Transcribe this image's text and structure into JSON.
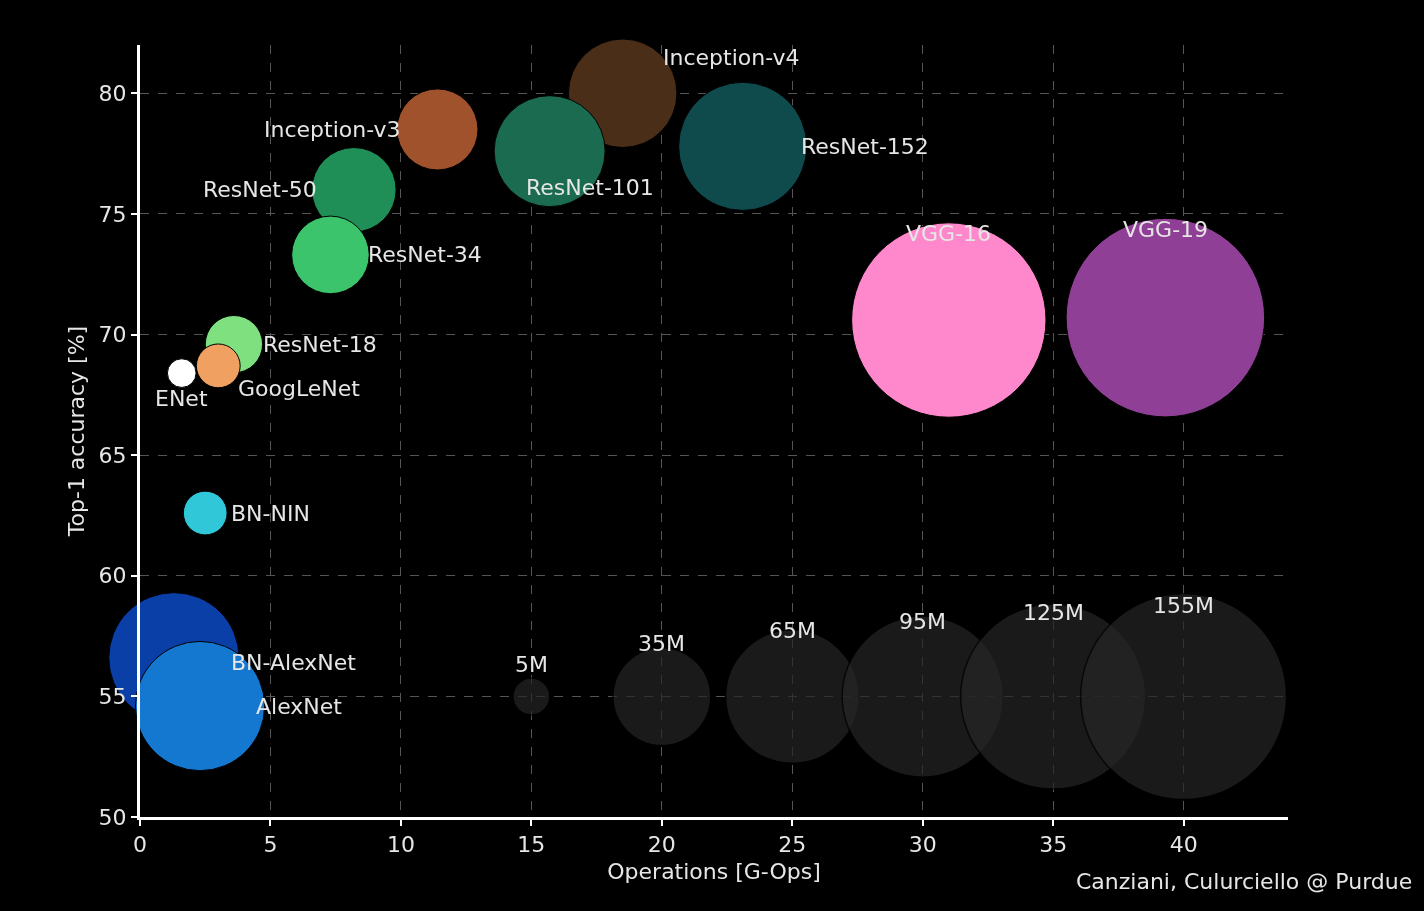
{
  "chart_data": {
    "type": "bubble",
    "xlabel": "Operations [G-Ops]",
    "ylabel": "Top-1 accuracy [%]",
    "xlim": [
      0,
      44
    ],
    "xticks": [
      0,
      5,
      10,
      15,
      20,
      25,
      30,
      35,
      40
    ],
    "ylim": [
      50,
      82
    ],
    "yticks": [
      50,
      55,
      60,
      65,
      70,
      75,
      80
    ],
    "grid": true,
    "legend": false,
    "marker": "circle",
    "size_legend": [
      {
        "value": 5,
        "label": "5M"
      },
      {
        "value": 35,
        "label": "35M"
      },
      {
        "value": 65,
        "label": "65M"
      },
      {
        "value": 95,
        "label": "95M"
      },
      {
        "value": 125,
        "label": "125M"
      },
      {
        "value": 155,
        "label": "155M"
      }
    ],
    "annotations": [
      "Canziani, Culurciello @ Purdue"
    ],
    "series": [
      {
        "name": "Inception-v4",
        "color": "#4a2e18",
        "x": [
          18.5
        ],
        "values": [
          80.0
        ],
        "sizes": [
          43
        ]
      },
      {
        "name": "Inception-v3",
        "color": "#a0522d",
        "x": [
          11.4
        ],
        "values": [
          78.5
        ],
        "sizes": [
          24
        ]
      },
      {
        "name": "ResNet-152",
        "color": "#0f4a4d",
        "x": [
          23.1
        ],
        "values": [
          77.8
        ],
        "sizes": [
          60
        ]
      },
      {
        "name": "ResNet-101",
        "color": "#1a6b50",
        "x": [
          15.7
        ],
        "values": [
          77.6
        ],
        "sizes": [
          45
        ]
      },
      {
        "name": "ResNet-50",
        "color": "#1f8f57",
        "x": [
          8.2
        ],
        "values": [
          76.0
        ],
        "sizes": [
          26
        ]
      },
      {
        "name": "ResNet-34",
        "color": "#3cc46c",
        "x": [
          7.3
        ],
        "values": [
          73.3
        ],
        "sizes": [
          22
        ]
      },
      {
        "name": "ResNet-18",
        "color": "#7ee07e",
        "x": [
          3.6
        ],
        "values": [
          69.6
        ],
        "sizes": [
          12
        ]
      },
      {
        "name": "GoogLeNet",
        "color": "#f0a060",
        "x": [
          3.0
        ],
        "values": [
          68.7
        ],
        "sizes": [
          7
        ]
      },
      {
        "name": "ENet",
        "color": "#ffffff",
        "x": [
          1.6
        ],
        "values": [
          68.4
        ],
        "sizes": [
          3
        ]
      },
      {
        "name": "BN-NIN",
        "color": "#30c8d8",
        "x": [
          2.5
        ],
        "values": [
          62.6
        ],
        "sizes": [
          7
        ]
      },
      {
        "name": "BN-AlexNet",
        "color": "#0a3fa8",
        "x": [
          1.3
        ],
        "values": [
          56.6
        ],
        "sizes": [
          62
        ]
      },
      {
        "name": "AlexNet",
        "color": "#1478d0",
        "x": [
          2.3
        ],
        "values": [
          54.6
        ],
        "sizes": [
          61
        ]
      },
      {
        "name": "VGG-16",
        "color": "#ff88cc",
        "x": [
          31.0
        ],
        "values": [
          70.6
        ],
        "sizes": [
          138
        ]
      },
      {
        "name": "VGG-19",
        "color": "#8f3f95",
        "x": [
          39.3
        ],
        "values": [
          70.7
        ],
        "sizes": [
          144
        ]
      }
    ]
  }
}
